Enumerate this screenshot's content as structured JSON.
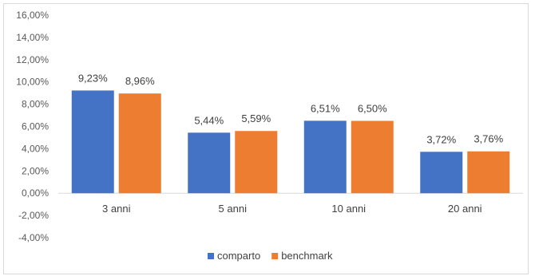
{
  "chart_data": {
    "type": "bar",
    "categories": [
      "3 anni",
      "5 anni",
      "10 anni",
      "20 anni"
    ],
    "series": [
      {
        "name": "comparto",
        "values": [
          9.23,
          5.44,
          6.51,
          3.72
        ],
        "labels": [
          "9,23%",
          "5,44%",
          "6,51%",
          "3,72%"
        ],
        "color": "#4472C4"
      },
      {
        "name": "benchmark",
        "values": [
          8.96,
          5.59,
          6.5,
          3.76
        ],
        "labels": [
          "8,96%",
          "5,59%",
          "6,50%",
          "3,76%"
        ],
        "color": "#ED7D31"
      }
    ],
    "ylim": [
      -4,
      16
    ],
    "yticks": [
      16,
      14,
      12,
      10,
      8,
      6,
      4,
      2,
      0,
      -2,
      -4
    ],
    "ytick_labels": [
      "16,00%",
      "14,00%",
      "12,00%",
      "10,00%",
      "8,00%",
      "6,00%",
      "4,00%",
      "2,00%",
      "0,00%",
      "-2,00%",
      "-4,00%"
    ],
    "grid": false,
    "legend_position": "bottom",
    "title": "",
    "xlabel": "",
    "ylabel": ""
  }
}
